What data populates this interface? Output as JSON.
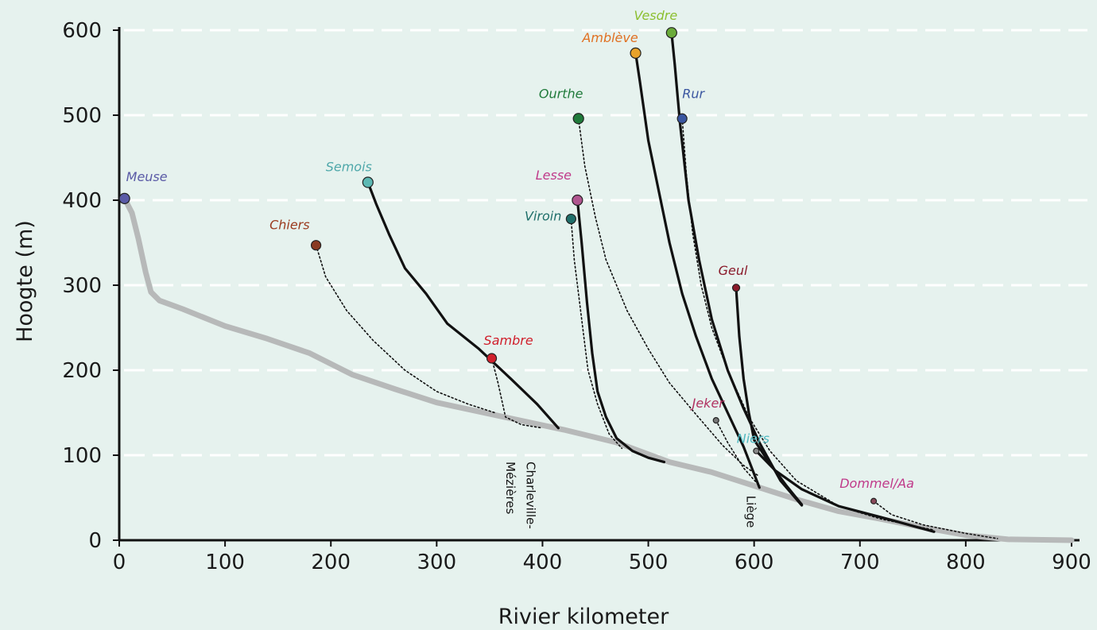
{
  "chart_data": {
    "type": "line",
    "title": "",
    "xlabel": "Rivier kilometer",
    "ylabel": "Hoogte (m)",
    "xlim": [
      0,
      900
    ],
    "ylim": [
      0,
      600
    ],
    "xticks": [
      0,
      100,
      200,
      300,
      400,
      500,
      600,
      700,
      800,
      900
    ],
    "yticks": [
      0,
      100,
      200,
      300,
      400,
      500,
      600
    ],
    "grid": "horizontal dashed",
    "colors": {
      "background": "#e6f2ee",
      "grid": "#ffffff",
      "main_river": "#b7b9b9",
      "tributary": "#111111"
    },
    "main_river": {
      "name": "Meuse",
      "label_color": "#5a5aa6",
      "marker_color": "#5a5aa6",
      "points": [
        [
          5,
          402
        ],
        [
          12,
          385
        ],
        [
          18,
          355
        ],
        [
          25,
          315
        ],
        [
          30,
          292
        ],
        [
          38,
          282
        ],
        [
          60,
          272
        ],
        [
          100,
          252
        ],
        [
          140,
          237
        ],
        [
          180,
          220
        ],
        [
          220,
          195
        ],
        [
          260,
          178
        ],
        [
          300,
          162
        ],
        [
          360,
          146
        ],
        [
          420,
          130
        ],
        [
          470,
          115
        ],
        [
          520,
          92
        ],
        [
          560,
          80
        ],
        [
          600,
          64
        ],
        [
          640,
          48
        ],
        [
          680,
          34
        ],
        [
          720,
          25
        ],
        [
          760,
          15
        ],
        [
          800,
          6
        ],
        [
          840,
          1
        ],
        [
          900,
          0
        ]
      ]
    },
    "series": [
      {
        "name": "Chiers",
        "style": "dotted",
        "label_color": "#9b3b1f",
        "marker_color": "#8a3a22",
        "marker_size": "medium",
        "points": [
          [
            186,
            347
          ],
          [
            195,
            310
          ],
          [
            215,
            270
          ],
          [
            240,
            235
          ],
          [
            270,
            200
          ],
          [
            300,
            175
          ],
          [
            330,
            160
          ],
          [
            355,
            150
          ]
        ]
      },
      {
        "name": "Semois",
        "style": "solid",
        "label_color": "#4fa8aa",
        "marker_color": "#5cb8b3",
        "marker_size": "large",
        "points": [
          [
            235,
            421
          ],
          [
            243,
            395
          ],
          [
            255,
            360
          ],
          [
            270,
            320
          ],
          [
            290,
            290
          ],
          [
            310,
            255
          ],
          [
            340,
            225
          ],
          [
            370,
            190
          ],
          [
            395,
            160
          ],
          [
            415,
            132
          ]
        ]
      },
      {
        "name": "Sambre",
        "style": "dotted",
        "label_color": "#d0202c",
        "marker_color": "#d0202c",
        "marker_size": "medium",
        "points": [
          [
            352,
            214
          ],
          [
            358,
            185
          ],
          [
            365,
            145
          ],
          [
            380,
            136
          ],
          [
            400,
            132
          ]
        ]
      },
      {
        "name": "Ourthe",
        "style": "dotted",
        "label_color": "#1f7a3a",
        "marker_color": "#1f7a3a",
        "marker_size": "large",
        "points": [
          [
            434,
            496
          ],
          [
            440,
            440
          ],
          [
            450,
            380
          ],
          [
            460,
            330
          ],
          [
            480,
            270
          ],
          [
            500,
            225
          ],
          [
            520,
            185
          ],
          [
            545,
            148
          ],
          [
            570,
            112
          ],
          [
            590,
            88
          ],
          [
            605,
            75
          ]
        ]
      },
      {
        "name": "Lesse",
        "style": "solid",
        "label_color": "#c03a8a",
        "marker_color": "#b0558f",
        "marker_size": "large",
        "points": [
          [
            433,
            400
          ],
          [
            437,
            350
          ],
          [
            442,
            280
          ],
          [
            447,
            220
          ],
          [
            452,
            175
          ],
          [
            460,
            145
          ],
          [
            470,
            120
          ],
          [
            485,
            105
          ],
          [
            500,
            97
          ],
          [
            515,
            92
          ]
        ]
      },
      {
        "name": "Viroin",
        "style": "dotted",
        "label_color": "#1f6f6a",
        "marker_color": "#1f6f6a",
        "marker_size": "medium",
        "points": [
          [
            427,
            378
          ],
          [
            430,
            330
          ],
          [
            436,
            270
          ],
          [
            443,
            200
          ],
          [
            452,
            160
          ],
          [
            463,
            125
          ],
          [
            475,
            108
          ]
        ]
      },
      {
        "name": "Amblève",
        "style": "solid",
        "label_color": "#e07022",
        "marker_color": "#e8a22a",
        "marker_size": "large",
        "points": [
          [
            488,
            573
          ],
          [
            492,
            540
          ],
          [
            500,
            470
          ],
          [
            510,
            410
          ],
          [
            520,
            350
          ],
          [
            532,
            290
          ],
          [
            545,
            240
          ],
          [
            560,
            190
          ],
          [
            575,
            150
          ],
          [
            590,
            110
          ],
          [
            605,
            62
          ]
        ]
      },
      {
        "name": "Vesdre",
        "style": "solid",
        "label_color": "#8cbf30",
        "marker_color": "#6aab3a",
        "marker_size": "large",
        "points": [
          [
            522,
            597
          ],
          [
            525,
            560
          ],
          [
            530,
            490
          ],
          [
            538,
            400
          ],
          [
            548,
            330
          ],
          [
            560,
            260
          ],
          [
            575,
            200
          ],
          [
            590,
            155
          ],
          [
            605,
            115
          ],
          [
            625,
            70
          ],
          [
            645,
            41
          ]
        ]
      },
      {
        "name": "Rur",
        "style": "dotted",
        "label_color": "#3a56a0",
        "marker_color": "#3a56a0",
        "marker_size": "medium",
        "points": [
          [
            532,
            496
          ],
          [
            536,
            430
          ],
          [
            542,
            360
          ],
          [
            550,
            300
          ],
          [
            560,
            250
          ],
          [
            575,
            200
          ],
          [
            595,
            145
          ],
          [
            615,
            105
          ],
          [
            640,
            70
          ],
          [
            680,
            40
          ],
          [
            720,
            25
          ],
          [
            770,
            12
          ]
        ]
      },
      {
        "name": "Geul",
        "style": "solid",
        "label_color": "#8a1a2a",
        "marker_color": "#8a1a2a",
        "marker_size": "small",
        "points": [
          [
            583,
            297
          ],
          [
            586,
            240
          ],
          [
            590,
            190
          ],
          [
            595,
            150
          ],
          [
            600,
            118
          ],
          [
            615,
            90
          ],
          [
            630,
            65
          ],
          [
            645,
            42
          ]
        ]
      },
      {
        "name": "Jeker",
        "style": "dotted",
        "label_color": "#b03060",
        "marker_color": "#777777",
        "marker_size": "tiny",
        "points": [
          [
            564,
            141
          ],
          [
            575,
            115
          ],
          [
            590,
            85
          ],
          [
            602,
            68
          ]
        ]
      },
      {
        "name": "Niers",
        "style": "solid",
        "label_color": "#4fb8c0",
        "marker_color": "#888888",
        "marker_size": "tiny",
        "points": [
          [
            602,
            105
          ],
          [
            620,
            82
          ],
          [
            645,
            60
          ],
          [
            680,
            40
          ],
          [
            720,
            27
          ],
          [
            770,
            10
          ]
        ]
      },
      {
        "name": "Dommel/Aa",
        "style": "dotted",
        "label_color": "#c03a8a",
        "marker_color": "#8a4a5a",
        "marker_size": "tiny",
        "points": [
          [
            713,
            46
          ],
          [
            730,
            30
          ],
          [
            760,
            18
          ],
          [
            800,
            8
          ],
          [
            830,
            2
          ]
        ]
      }
    ],
    "annotations": [
      {
        "text": "Charleville-",
        "x": 385,
        "y": 100,
        "rotation": 90
      },
      {
        "text": "Mézières",
        "x": 366,
        "y": 100,
        "rotation": 90
      },
      {
        "text": "Liège",
        "x": 593,
        "y": 60,
        "rotation": 90
      }
    ]
  }
}
